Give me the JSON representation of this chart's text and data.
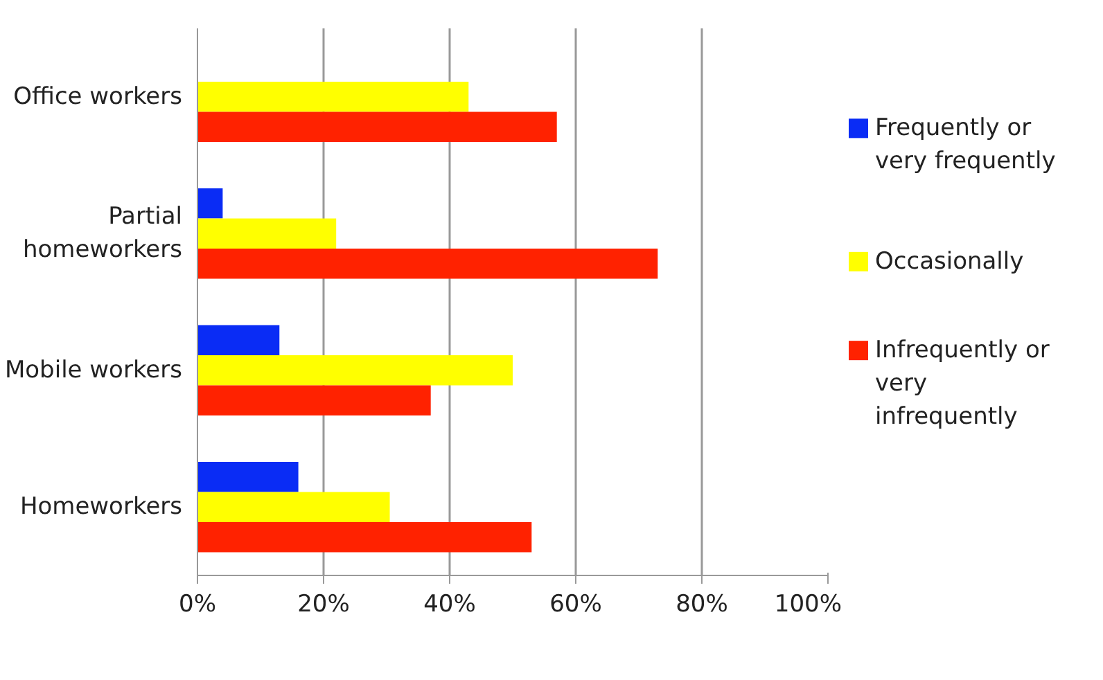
{
  "chart_data": {
    "type": "bar",
    "orientation": "horizontal",
    "categories": [
      "Office workers",
      "Partial homeworkers",
      "Mobile workers",
      "Homeworkers"
    ],
    "series": [
      {
        "name": "Frequently or very frequently",
        "color": "#0a2cf5",
        "values": [
          0,
          4,
          13,
          16
        ]
      },
      {
        "name": "Occasionally",
        "color": "#ffff00",
        "values": [
          43,
          22,
          50,
          30.5
        ]
      },
      {
        "name": "Infrequently or very infrequently",
        "color": "#ff2200",
        "values": [
          57,
          73,
          37,
          53
        ]
      }
    ],
    "xlim": [
      0,
      100
    ],
    "xticks": [
      {
        "value": 0,
        "label": "0%"
      },
      {
        "value": 20,
        "label": "20%"
      },
      {
        "value": 40,
        "label": "40%"
      },
      {
        "value": 60,
        "label": "60%"
      },
      {
        "value": 80,
        "label": "80%"
      },
      {
        "value": 100,
        "label": "100%"
      }
    ],
    "grid": "x",
    "legend": "right"
  }
}
